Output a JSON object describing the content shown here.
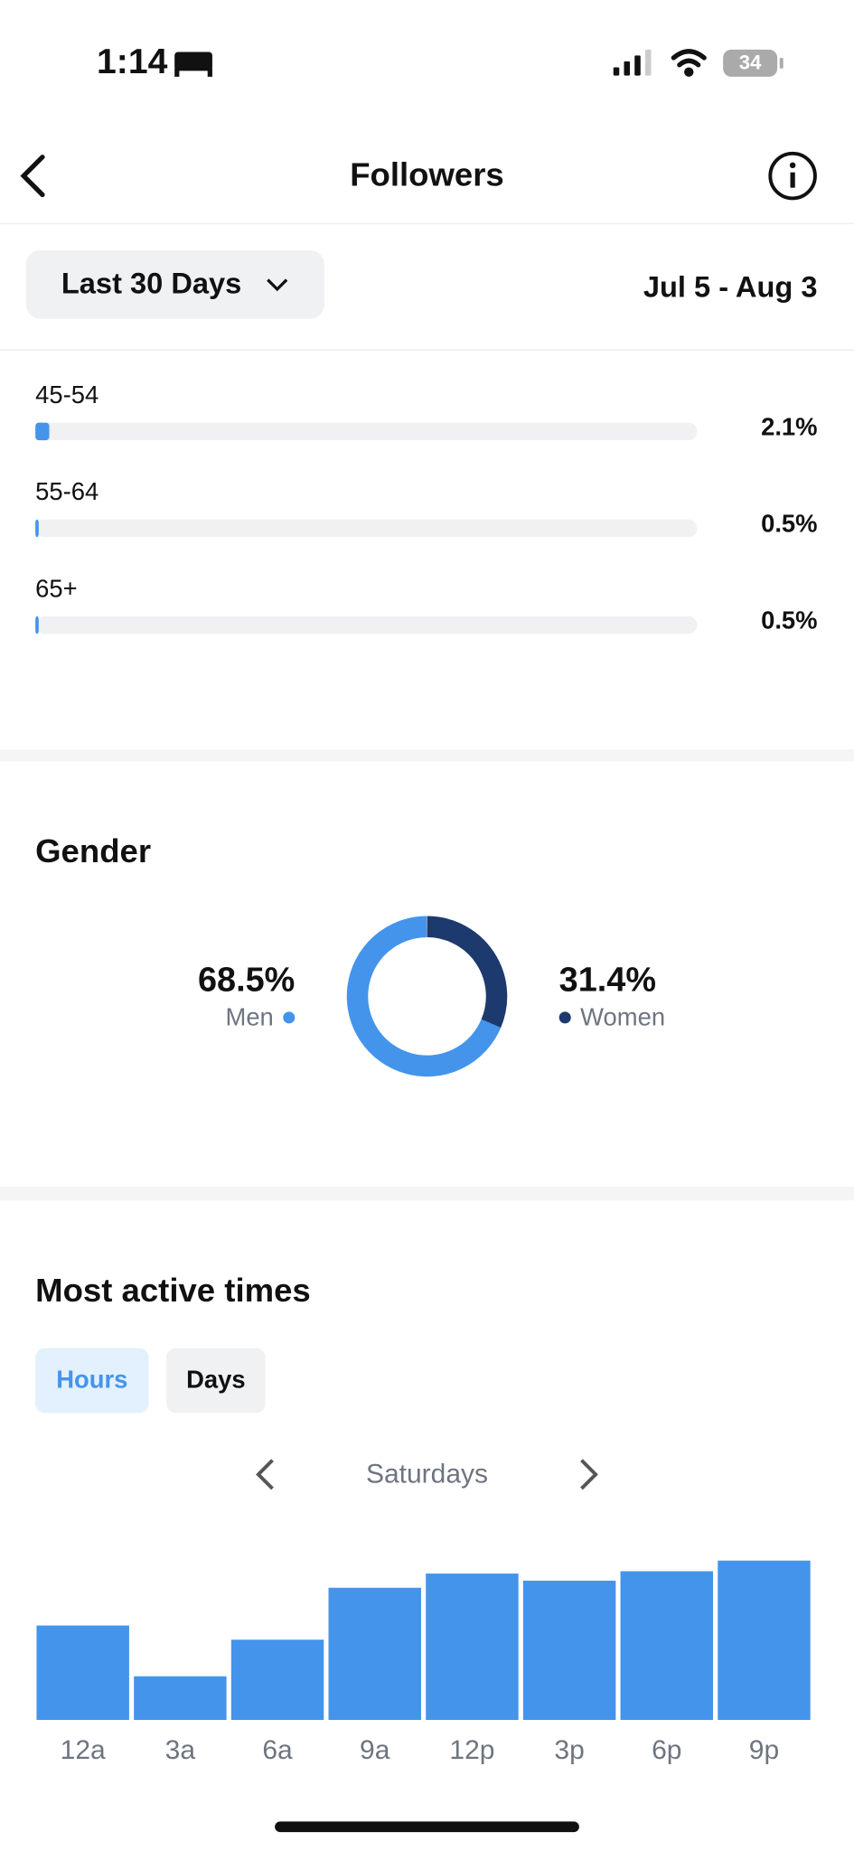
{
  "status_bar": {
    "time": "1:14",
    "battery": "34"
  },
  "header": {
    "title": "Followers"
  },
  "filter": {
    "range": "Last 30 Days",
    "dates": "Jul 5 - Aug 3"
  },
  "age": {
    "type": "hbar",
    "categories": [
      "45-54",
      "55-64",
      "65+"
    ],
    "values": [
      2.1,
      0.5,
      0.5
    ],
    "value_labels": [
      "2.1%",
      "0.5%",
      "0.5%"
    ],
    "xlim": [
      0,
      100
    ],
    "color": "#4494eb"
  },
  "gender": {
    "type": "donut",
    "title": "Gender",
    "series": [
      {
        "name": "Men",
        "color": "#4494eb",
        "value": 68.5,
        "value_label": "68.5%"
      },
      {
        "name": "Women",
        "color": "#1c3a6e",
        "value": 31.4,
        "value_label": "31.4%"
      }
    ]
  },
  "active_times": {
    "type": "bar",
    "title": "Most active times",
    "tabs": [
      "Hours",
      "Days"
    ],
    "day": "Saturdays",
    "categories": [
      "12a",
      "3a",
      "6a",
      "9a",
      "12p",
      "3p",
      "6p",
      "9p"
    ],
    "values": [
      80,
      37,
      68,
      112,
      124,
      118,
      126,
      135
    ],
    "ylim": [
      0,
      135
    ],
    "color": "#4494eb"
  }
}
